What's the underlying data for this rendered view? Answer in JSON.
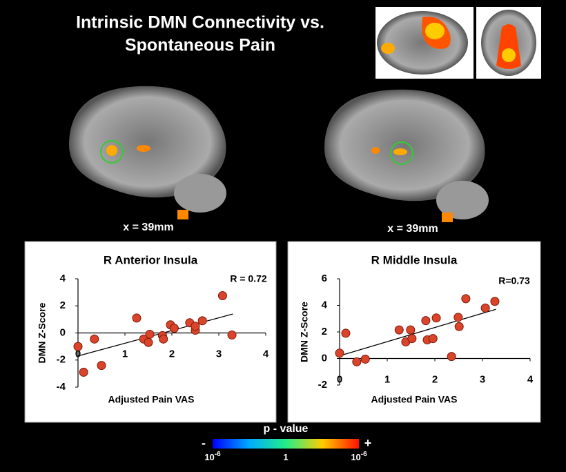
{
  "figure": {
    "title_lines": [
      "Intrinsic DMN Connectivity vs.",
      "Spontaneous Pain"
    ],
    "slice_labels": [
      "x = 39mm",
      "x = 39mm"
    ],
    "colorbar": {
      "title": "p - value",
      "min_sign": "-",
      "max_sign": "+",
      "labels": [
        {
          "base": "10",
          "exponent": "-6"
        },
        {
          "base": "1"
        },
        {
          "base": "10",
          "exponent": "-6"
        }
      ]
    }
  },
  "chart_data": [
    {
      "type": "scatter",
      "title": "R Anterior Insula",
      "x_label": "Adjusted Pain VAS",
      "y_label": "DMN Z-Score",
      "annotation": "R = 0.72",
      "xlim": [
        0,
        4
      ],
      "xticks": [
        0,
        1,
        2,
        3,
        4
      ],
      "ylim": [
        -4,
        4
      ],
      "yticks": [
        -4,
        -2,
        0,
        2,
        4
      ],
      "color": "#d9442b",
      "x": [
        0,
        0.12,
        0.35,
        0.5,
        1.25,
        1.4,
        1.5,
        1.53,
        1.8,
        1.82,
        1.97,
        2.05,
        2.38,
        2.5,
        2.5,
        2.65,
        3.08,
        3.28
      ],
      "values": [
        -1.0,
        -2.9,
        -0.45,
        -2.4,
        1.1,
        -0.45,
        -0.7,
        -0.1,
        -0.2,
        -0.45,
        0.6,
        0.35,
        0.75,
        0.2,
        0.5,
        0.9,
        2.75,
        -0.15
      ],
      "trendline": {
        "x": [
          0,
          3.3
        ],
        "values": [
          -1.7,
          1.4
        ]
      }
    },
    {
      "type": "scatter",
      "title": "R Middle Insula",
      "x_label": "Adjusted Pain VAS",
      "y_label": "DMN Z-Score",
      "annotation": "R=0.73",
      "xlim": [
        0,
        4
      ],
      "xticks": [
        0,
        1,
        2,
        3,
        4
      ],
      "ylim": [
        -2,
        6
      ],
      "yticks": [
        -2,
        0,
        2,
        4,
        6
      ],
      "color": "#d9442b",
      "x": [
        0,
        0.13,
        0.36,
        0.54,
        1.25,
        1.39,
        1.49,
        1.52,
        1.81,
        1.84,
        1.96,
        2.03,
        2.35,
        2.49,
        2.51,
        2.65,
        3.06,
        3.26
      ],
      "values": [
        0.4,
        1.9,
        -0.25,
        -0.05,
        2.15,
        1.25,
        2.15,
        1.5,
        2.85,
        1.4,
        1.5,
        3.05,
        0.15,
        3.1,
        2.4,
        4.5,
        3.8,
        4.3
      ],
      "trendline": {
        "x": [
          0,
          3.28
        ],
        "values": [
          0.2,
          3.7
        ]
      }
    }
  ]
}
